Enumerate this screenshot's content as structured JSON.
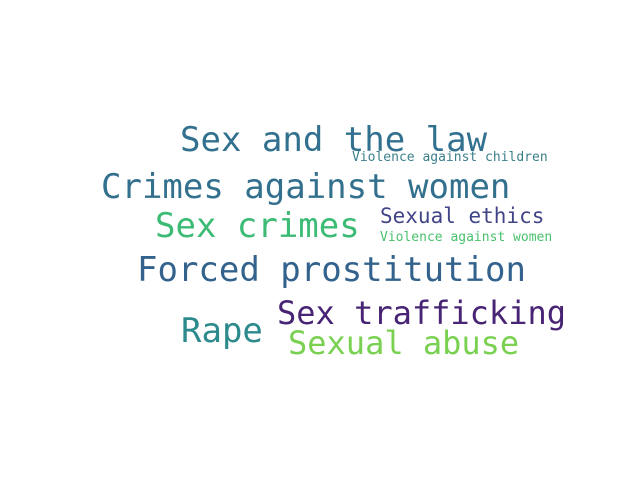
{
  "words": [
    {
      "text": "Sex and the law",
      "color": "#31708e"
    },
    {
      "text": "Violence against children",
      "color": "#3b7f8c"
    },
    {
      "text": "Crimes against women",
      "color": "#32708d"
    },
    {
      "text": "Sex crimes",
      "color": "#3cbb75"
    },
    {
      "text": "Sexual ethics",
      "color": "#414487"
    },
    {
      "text": "Violence against women",
      "color": "#4ac16d"
    },
    {
      "text": "Forced prostitution",
      "color": "#33638d"
    },
    {
      "text": "Sex trafficking",
      "color": "#482475"
    },
    {
      "text": "Rape",
      "color": "#2c8a8c"
    },
    {
      "text": "Sexual abuse",
      "color": "#7ad151"
    }
  ]
}
